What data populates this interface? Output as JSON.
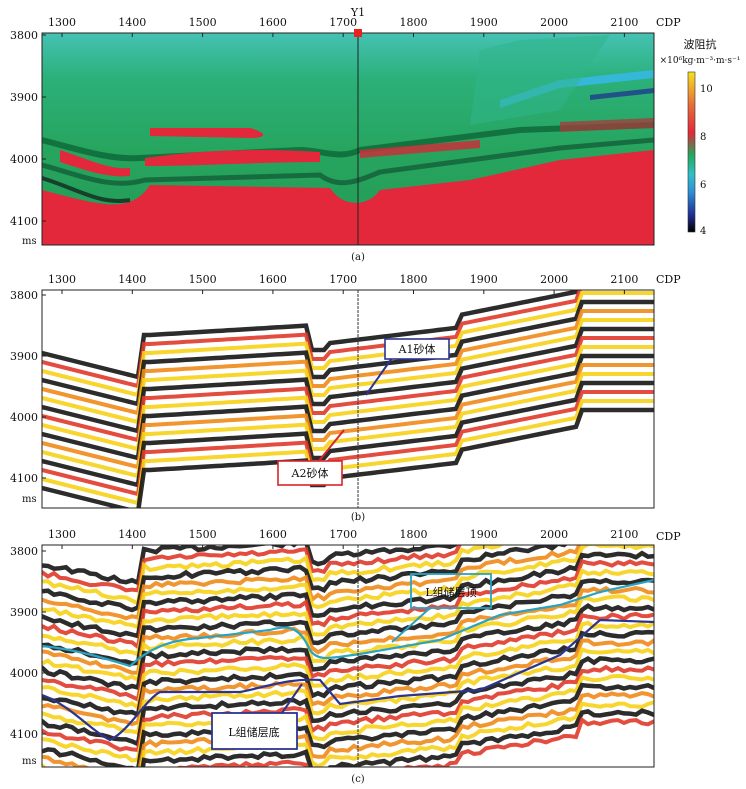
{
  "panels": [
    {
      "id": "a",
      "caption": "(a)",
      "x_ticks": [
        "1300",
        "1400",
        "1500",
        "1600",
        "1700",
        "1800",
        "1900",
        "2000",
        "2100"
      ],
      "x_unit": "CDP",
      "y_ticks": [
        "3800",
        "3900",
        "4000",
        "4100"
      ],
      "y_unit": "ms",
      "well_label": "Y1"
    },
    {
      "id": "b",
      "caption": "(b)",
      "x_ticks": [
        "1300",
        "1400",
        "1500",
        "1600",
        "1700",
        "1800",
        "1900",
        "2000",
        "2100"
      ],
      "x_unit": "CDP",
      "y_ticks": [
        "3800",
        "3900",
        "4000",
        "4100"
      ],
      "y_unit": "ms",
      "annotations": [
        "A1砂体",
        "A2砂体"
      ]
    },
    {
      "id": "c",
      "caption": "(c)",
      "x_ticks": [
        "1300",
        "1400",
        "1500",
        "1600",
        "1700",
        "1800",
        "1900",
        "2000",
        "2100"
      ],
      "x_unit": "CDP",
      "y_ticks": [
        "3800",
        "3900",
        "4000",
        "4100"
      ],
      "y_unit": "ms",
      "annotations": [
        "L组储层顶",
        "L组储层底"
      ]
    }
  ],
  "colorbar": {
    "title": "波阻抗",
    "unit": "×10⁶kg·m⁻³·m·s⁻¹",
    "ticks": [
      "10",
      "8",
      "6",
      "4"
    ]
  },
  "colors": {
    "impedance_green": "#2aa86a",
    "impedance_red": "#e2283a",
    "impedance_cyan": "#35b8d8",
    "seismic_black": "#151515",
    "seismic_red": "#e03a2a",
    "seismic_orange": "#f08a1a",
    "seismic_yellow": "#f6d21a",
    "top_horizon": "#29a3c2",
    "bottom_horizon": "#2b3590",
    "well_marker": "#e8231f",
    "box_blue": "#2b3590",
    "box_red": "#d8242a",
    "box_cyan": "#29a3c2"
  }
}
